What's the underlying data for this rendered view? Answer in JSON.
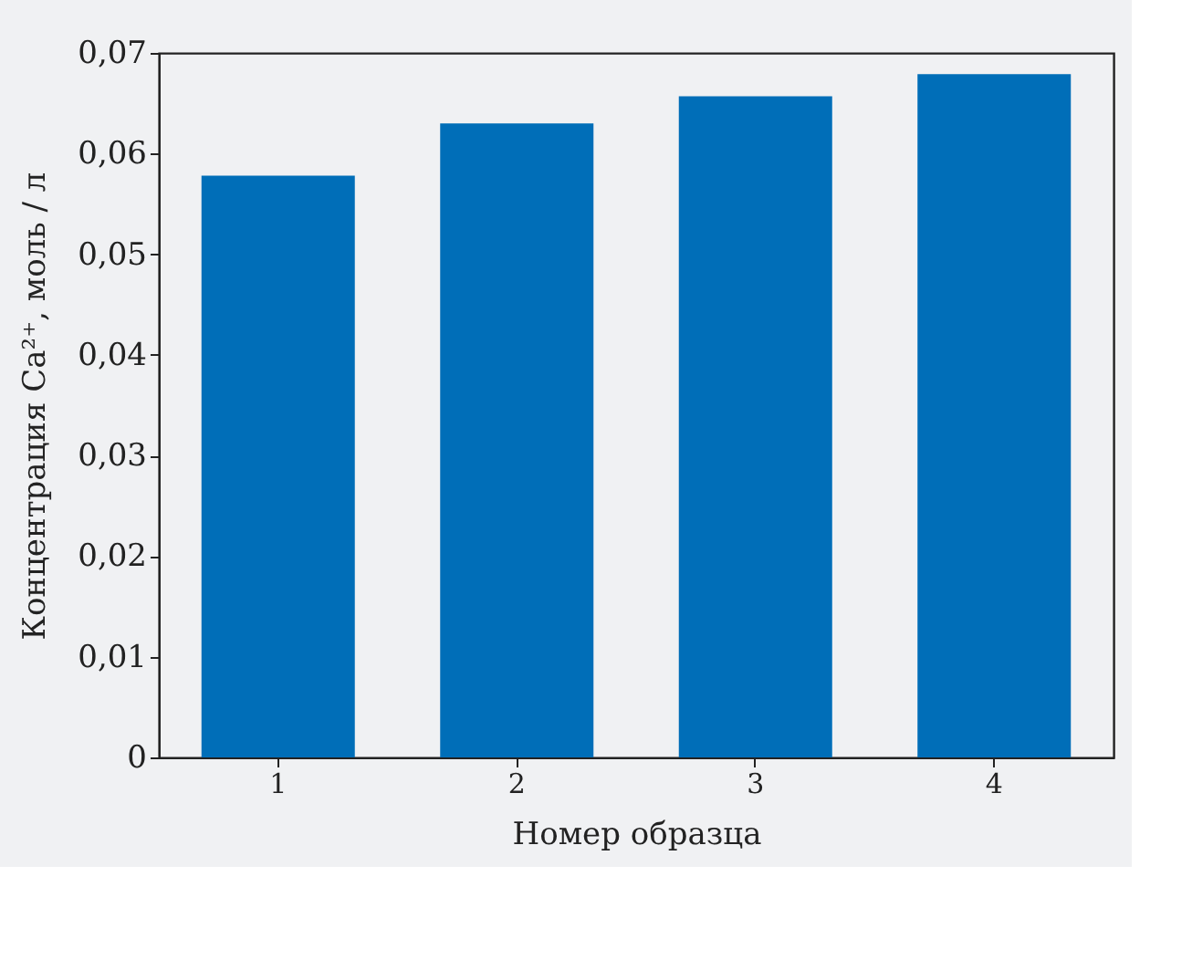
{
  "chart_data": {
    "type": "bar",
    "xlabel": "Номер образца",
    "ylabel": "Концентрация Ca²⁺, моль / л",
    "categories": [
      "1",
      "2",
      "3",
      "4"
    ],
    "values": [
      0.0578,
      0.063,
      0.0657,
      0.0679
    ],
    "color": "#006eb8",
    "ylim": [
      0,
      0.07
    ],
    "yticks": [
      0,
      {
        "value": 0.01,
        "label": "0,01"
      },
      {
        "value": 0.02,
        "label": "0,02"
      },
      {
        "value": 0.03,
        "label": "0,03"
      },
      {
        "value": 0.04,
        "label": "0,04"
      },
      {
        "value": 0.05,
        "label": "0,05"
      },
      {
        "value": 0.06,
        "label": "0,06"
      },
      {
        "value": 0.07,
        "label": "0,07"
      }
    ],
    "grid": false
  }
}
